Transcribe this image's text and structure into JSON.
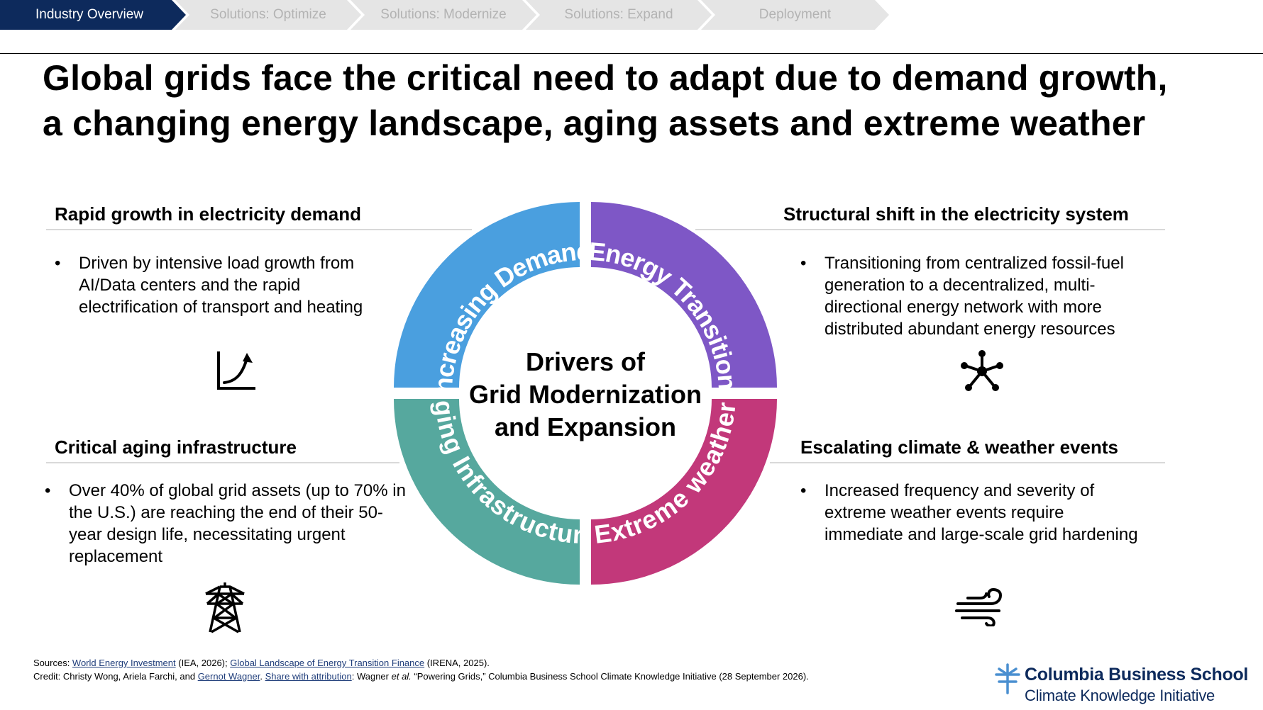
{
  "breadcrumb": {
    "items": [
      {
        "label": "Industry Overview",
        "active": true
      },
      {
        "label": "Solutions: Optimize",
        "active": false
      },
      {
        "label": "Solutions: Modernize",
        "active": false
      },
      {
        "label": "Solutions: Expand",
        "active": false
      },
      {
        "label": "Deployment",
        "active": false
      }
    ]
  },
  "title": {
    "line1": "Global grids face the critical need to adapt due to demand growth,",
    "line2": "a changing energy landscape, aging assets and extreme weather"
  },
  "sections": {
    "demand": {
      "heading": "Rapid growth in electricity demand",
      "bullet": "Driven by intensive load growth from AI/Data centers and the rapid electrification of transport and heating",
      "icon": "growth-chart-icon"
    },
    "structural": {
      "heading": "Structural shift in the electricity system",
      "bullet": "Transitioning from centralized fossil-fuel generation to a decentralized, multi-directional energy network with more distributed abundant energy resources",
      "icon": "network-hub-icon"
    },
    "aging": {
      "heading": "Critical aging infrastructure",
      "bullet": "Over 40% of global grid assets (up to 70% in the U.S.) are reaching the end of their 50-year design life, necessitating urgent replacement",
      "icon": "transmission-tower-icon"
    },
    "climate": {
      "heading": "Escalating climate & weather events",
      "bullet": "Increased frequency and severity of extreme weather events require immediate and large-scale grid hardening",
      "icon": "wind-icon"
    }
  },
  "wheel": {
    "center": {
      "line1": "Drivers of",
      "line2": "Grid Modernization",
      "line3": "and Expansion"
    },
    "segments": [
      {
        "label": "Increasing Demand",
        "color": "#4a9fdf"
      },
      {
        "label": "Energy Transition",
        "color": "#7e57c6"
      },
      {
        "label": "Aging Infrastructure",
        "color": "#56a89e"
      },
      {
        "label": "Extreme weather",
        "color": "#c2387a"
      }
    ]
  },
  "footer": {
    "sources_prefix": "Sources: ",
    "source1_link": "World Energy Investment",
    "source1_rest": " (IEA, 2026); ",
    "source2_link": "Global Landscape of Energy Transition Finance",
    "source2_rest": " (IRENA, 2025).",
    "credit_prefix": "Credit: Christy Wong, Ariela Farchi, and ",
    "credit_link": "Gernot Wagner",
    "credit_sep": ". ",
    "share_link": "Share with attribution",
    "credit_mid": ": Wagner ",
    "credit_etal": "et al.",
    "credit_rest": " “Powering Grids,” Columbia Business School Climate Knowledge Initiative (28 September 2026)."
  },
  "logo": {
    "name": "Columbia Business School",
    "subtitle": "Climate Knowledge Initiative",
    "color": "#0d2a5c"
  },
  "colors": {
    "accent_navy": "#0d2a5c",
    "inactive_crumb": "#e5e5e5"
  }
}
